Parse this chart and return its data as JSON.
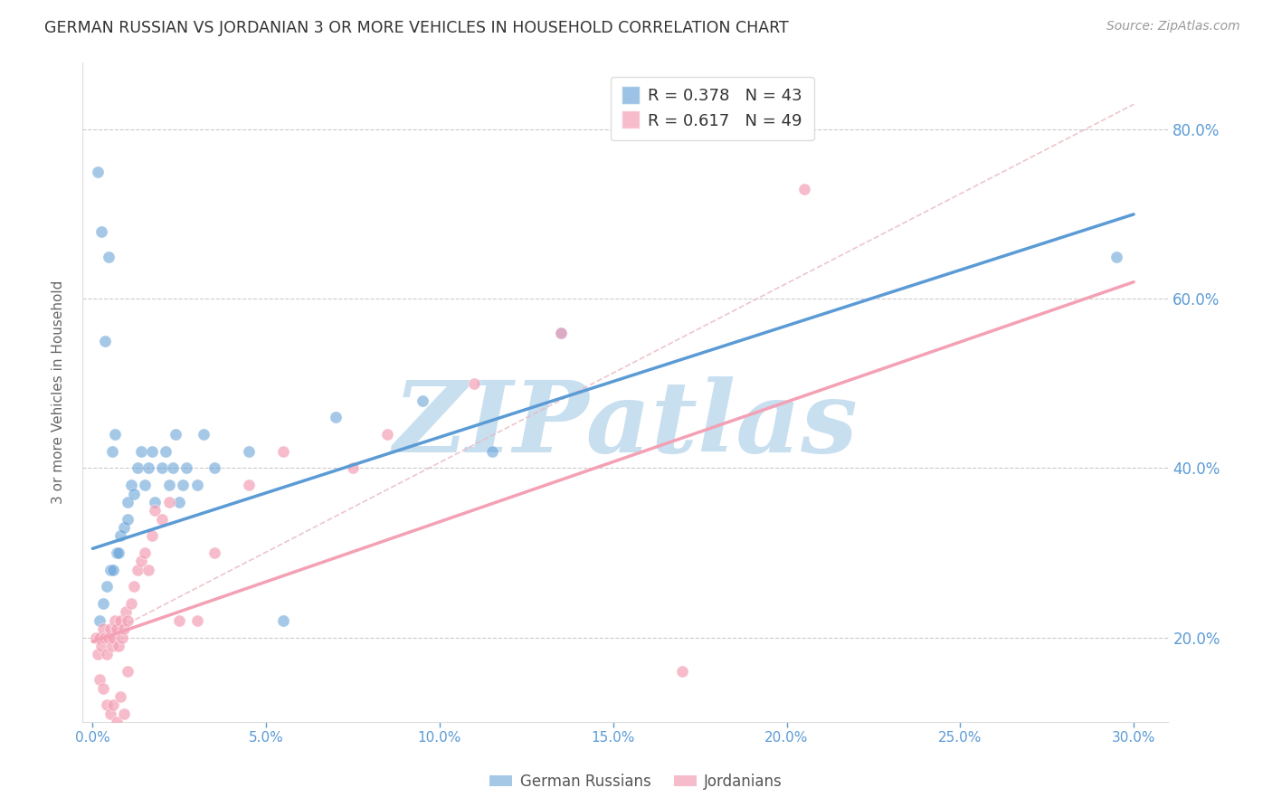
{
  "title": "GERMAN RUSSIAN VS JORDANIAN 3 OR MORE VEHICLES IN HOUSEHOLD CORRELATION CHART",
  "source": "Source: ZipAtlas.com",
  "xlim": [
    -0.3,
    31.0
  ],
  "ylim": [
    10.0,
    88.0
  ],
  "y_ticks": [
    20.0,
    40.0,
    60.0,
    80.0
  ],
  "x_ticks": [
    0.0,
    5.0,
    10.0,
    15.0,
    20.0,
    25.0,
    30.0
  ],
  "legend_label_german": "German Russians",
  "legend_label_jordanian": "Jordanians",
  "watermark": "ZIPatlas",
  "watermark_color": "#C8DFF0",
  "blue_color": "#5B9BD5",
  "pink_color": "#F4A0B5",
  "axis_label_color": "#5B9BD5",
  "ylabel": "3 or more Vehicles in Household",
  "gr_line_x0": 0.0,
  "gr_line_y0": 30.5,
  "gr_line_x1": 30.0,
  "gr_line_y1": 70.0,
  "jd_line_x0": 0.0,
  "jd_line_y0": 19.5,
  "jd_line_x1": 30.0,
  "jd_line_y1": 62.0,
  "dash_line_x0": 0.0,
  "dash_line_y0": 19.5,
  "dash_line_x1": 30.0,
  "dash_line_y1": 83.0,
  "gr_scatter_x": [
    0.2,
    0.3,
    0.4,
    0.5,
    0.6,
    0.7,
    0.8,
    0.9,
    1.0,
    1.0,
    1.1,
    1.2,
    1.3,
    1.4,
    1.5,
    1.6,
    1.7,
    1.8,
    2.0,
    2.1,
    2.2,
    2.3,
    2.4,
    2.5,
    2.6,
    2.7,
    3.0,
    3.2,
    3.5,
    4.5,
    5.5,
    7.0,
    9.5,
    11.5,
    13.5,
    29.5,
    0.15,
    0.25,
    0.35,
    0.45,
    0.55,
    0.65,
    0.75
  ],
  "gr_scatter_y": [
    22.0,
    24.0,
    26.0,
    28.0,
    28.0,
    30.0,
    32.0,
    33.0,
    34.0,
    36.0,
    38.0,
    37.0,
    40.0,
    42.0,
    38.0,
    40.0,
    42.0,
    36.0,
    40.0,
    42.0,
    38.0,
    40.0,
    44.0,
    36.0,
    38.0,
    40.0,
    38.0,
    44.0,
    40.0,
    42.0,
    22.0,
    46.0,
    48.0,
    42.0,
    56.0,
    65.0,
    75.0,
    68.0,
    55.0,
    65.0,
    42.0,
    44.0,
    30.0
  ],
  "jd_scatter_x": [
    0.1,
    0.15,
    0.2,
    0.25,
    0.3,
    0.35,
    0.4,
    0.45,
    0.5,
    0.55,
    0.6,
    0.65,
    0.7,
    0.75,
    0.8,
    0.85,
    0.9,
    0.95,
    1.0,
    1.1,
    1.2,
    1.3,
    1.4,
    1.5,
    1.6,
    1.7,
    1.8,
    2.0,
    2.2,
    2.5,
    3.0,
    3.5,
    4.5,
    5.5,
    7.5,
    8.5,
    11.0,
    13.5,
    17.0,
    20.5,
    0.2,
    0.3,
    0.4,
    0.5,
    0.6,
    0.7,
    0.8,
    0.9,
    1.0
  ],
  "jd_scatter_y": [
    20.0,
    18.0,
    20.0,
    19.0,
    21.0,
    20.0,
    18.0,
    20.0,
    21.0,
    19.0,
    20.0,
    22.0,
    21.0,
    19.0,
    22.0,
    20.0,
    21.0,
    23.0,
    22.0,
    24.0,
    26.0,
    28.0,
    29.0,
    30.0,
    28.0,
    32.0,
    35.0,
    34.0,
    36.0,
    22.0,
    22.0,
    30.0,
    38.0,
    42.0,
    40.0,
    44.0,
    50.0,
    56.0,
    16.0,
    73.0,
    15.0,
    14.0,
    12.0,
    11.0,
    12.0,
    10.0,
    13.0,
    11.0,
    16.0
  ]
}
